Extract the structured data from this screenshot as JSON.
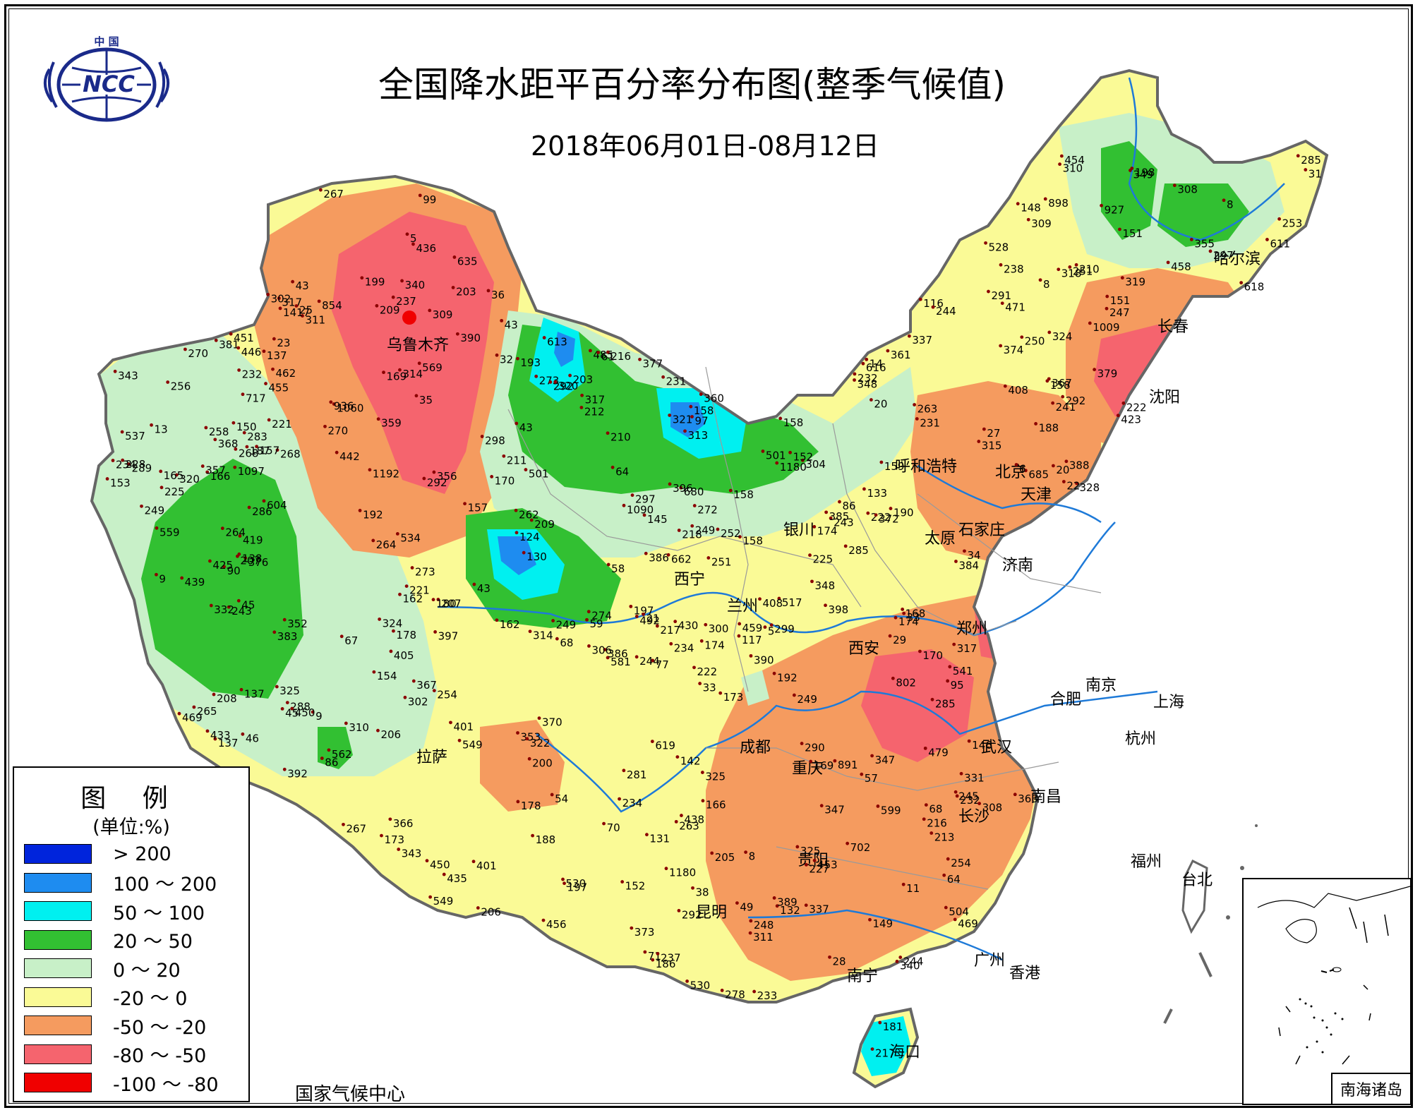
{
  "header": {
    "title": "全国降水距平百分率分布图(整季气候值)",
    "subtitle": "2018年06月01日-08月12日"
  },
  "logo": {
    "top_text": "中 国",
    "main_text": "NCC"
  },
  "legend": {
    "title": "图 例",
    "unit": "(单位:%)",
    "items": [
      {
        "label": "> 200",
        "color": "#0024dc"
      },
      {
        "label": "100 ～ 200",
        "color": "#1e8cf0"
      },
      {
        "label": "50 ～ 100",
        "color": "#00f0f0"
      },
      {
        "label": "20 ～ 50",
        "color": "#32c032"
      },
      {
        "label": "0 ～ 20",
        "color": "#c8f0c8"
      },
      {
        "label": "-20 ～ 0",
        "color": "#fafa96"
      },
      {
        "label": "-50 ～ -20",
        "color": "#f59b5f"
      },
      {
        "label": "-80 ～ -50",
        "color": "#f5646e"
      },
      {
        "label": "-100 ～ -80",
        "color": "#f00000"
      }
    ]
  },
  "footer": {
    "credit": "国家气候中心"
  },
  "inset": {
    "label": "南海诸岛"
  },
  "cities": [
    {
      "name": "乌鲁木齐"
    },
    {
      "name": "拉萨"
    },
    {
      "name": "西宁"
    },
    {
      "name": "兰州"
    },
    {
      "name": "银川"
    },
    {
      "name": "呼和浩特"
    },
    {
      "name": "北京"
    },
    {
      "name": "天津"
    },
    {
      "name": "石家庄"
    },
    {
      "name": "太原"
    },
    {
      "name": "济南"
    },
    {
      "name": "郑州"
    },
    {
      "name": "西安"
    },
    {
      "name": "成都"
    },
    {
      "name": "重庆"
    },
    {
      "name": "贵阳"
    },
    {
      "name": "昆明"
    },
    {
      "name": "南宁"
    },
    {
      "name": "海口"
    },
    {
      "name": "广州"
    },
    {
      "name": "香港"
    },
    {
      "name": "长沙"
    },
    {
      "name": "武汉"
    },
    {
      "name": "南昌"
    },
    {
      "name": "合肥"
    },
    {
      "name": "南京"
    },
    {
      "name": "上海"
    },
    {
      "name": "杭州"
    },
    {
      "name": "福州"
    },
    {
      "name": "台北"
    },
    {
      "name": "沈阳"
    },
    {
      "name": "长春"
    },
    {
      "name": "哈尔滨"
    }
  ],
  "station_values": [
    "222",
    "232",
    "492",
    "174",
    "435",
    "517",
    "376",
    "581",
    "263",
    "377",
    "501",
    "501",
    "243",
    "137",
    "559",
    "479",
    "197",
    "373",
    "386",
    "569",
    "238",
    "450",
    "170",
    "192",
    "213",
    "153",
    "225",
    "186",
    "348",
    "232",
    "244",
    "248",
    "319",
    "207",
    "320",
    "359",
    "318",
    "218",
    "131",
    "146",
    "292",
    "270",
    "297",
    "233",
    "158",
    "168",
    "166",
    "149",
    "190",
    "251",
    "225",
    "116",
    "67",
    "249",
    "86",
    "173",
    "385",
    "247",
    "124",
    "59",
    "77",
    "355",
    "485",
    "198",
    "193",
    "206",
    "356",
    "36",
    "254",
    "211",
    "192",
    "286",
    "117",
    "86",
    "71",
    "314",
    "165",
    "313",
    "178",
    "169",
    "258",
    "281",
    "537",
    "133",
    "68",
    "343",
    "187",
    "256",
    "174",
    "166",
    "268",
    "268",
    "264",
    "206",
    "217",
    "188",
    "231",
    "158",
    "285",
    "237",
    "243",
    "216",
    "267",
    "90",
    "148",
    "212",
    "315",
    "244",
    "234",
    "309",
    "157",
    "197",
    "249",
    "353",
    "425",
    "232",
    "366",
    "222",
    "151",
    "154",
    "221",
    "332",
    "245",
    "157",
    "205",
    "227",
    "209",
    "231",
    "388",
    "203",
    "298",
    "250",
    "178",
    "132",
    "158",
    "285",
    "662",
    "273",
    "237",
    "317",
    "180",
    "244",
    "208",
    "162",
    "265",
    "274",
    "162",
    "347",
    "200",
    "325",
    "308",
    "137",
    "99",
    "241",
    "381",
    "251",
    "234",
    "291",
    "310",
    "283",
    "299",
    "685",
    "635",
    "317",
    "209",
    "340",
    "199",
    "253",
    "927",
    "290",
    "311",
    "252",
    "217",
    "289",
    "304",
    "203",
    "221",
    "599",
    "423",
    "317",
    "348",
    "249",
    "310",
    "321",
    "368",
    "401",
    "408",
    "405",
    "170",
    "169",
    "292",
    "263",
    "297",
    "331",
    "216",
    "1192",
    "442",
    "278",
    "386",
    "340",
    "142",
    "181",
    "433",
    "455",
    "530",
    "264",
    "292",
    "324",
    "285",
    "270",
    "352",
    "234",
    "308",
    "337",
    "311",
    "302",
    "349",
    "343",
    "363",
    "408",
    "374",
    "325",
    "390",
    "337",
    "439",
    "288",
    "379",
    "618",
    "390",
    "549",
    "611",
    "530",
    "462",
    "616",
    "528",
    "604",
    "292",
    "306",
    "456",
    "347",
    "309",
    "222",
    "228",
    "383",
    "459",
    "453",
    "469",
    "361",
    "541",
    "254",
    "430",
    "267",
    "458",
    "451",
    "300",
    "680",
    "1180",
    "438",
    "454",
    "619",
    "322",
    "471",
    "446",
    "717",
    "702",
    "802",
    "562",
    "436",
    "504",
    "150",
    "469",
    "401",
    "367",
    "1060",
    "1090",
    "613",
    "534",
    "549",
    "891",
    "1097",
    "1417",
    "936",
    "1009",
    "854",
    "898",
    "360",
    "384",
    "27",
    "43",
    "97",
    "34",
    "57",
    "54",
    "64",
    "207",
    "152",
    "210",
    "174",
    "249",
    "35",
    "70",
    "61",
    "43",
    "45",
    "33",
    "210",
    "130",
    "145",
    "328",
    "272",
    "370",
    "357",
    "392",
    "314",
    "389",
    "302",
    "419",
    "324",
    "396",
    "397",
    "320",
    "262",
    "152",
    "173",
    "188",
    "398",
    "138",
    "158",
    "158",
    "137",
    "64",
    "68",
    "159",
    "43",
    "32",
    "45",
    "49",
    "46",
    "9",
    "38",
    "58",
    "31",
    "23",
    "20",
    "21",
    "43",
    "14",
    "20",
    "8",
    "5",
    "22",
    "33",
    "151",
    "95",
    "28",
    "5",
    "8",
    "29",
    "25",
    "11",
    "8",
    "9",
    "13",
    "6",
    "372",
    "367",
    "1180",
    "450",
    "325",
    "273"
  ]
}
